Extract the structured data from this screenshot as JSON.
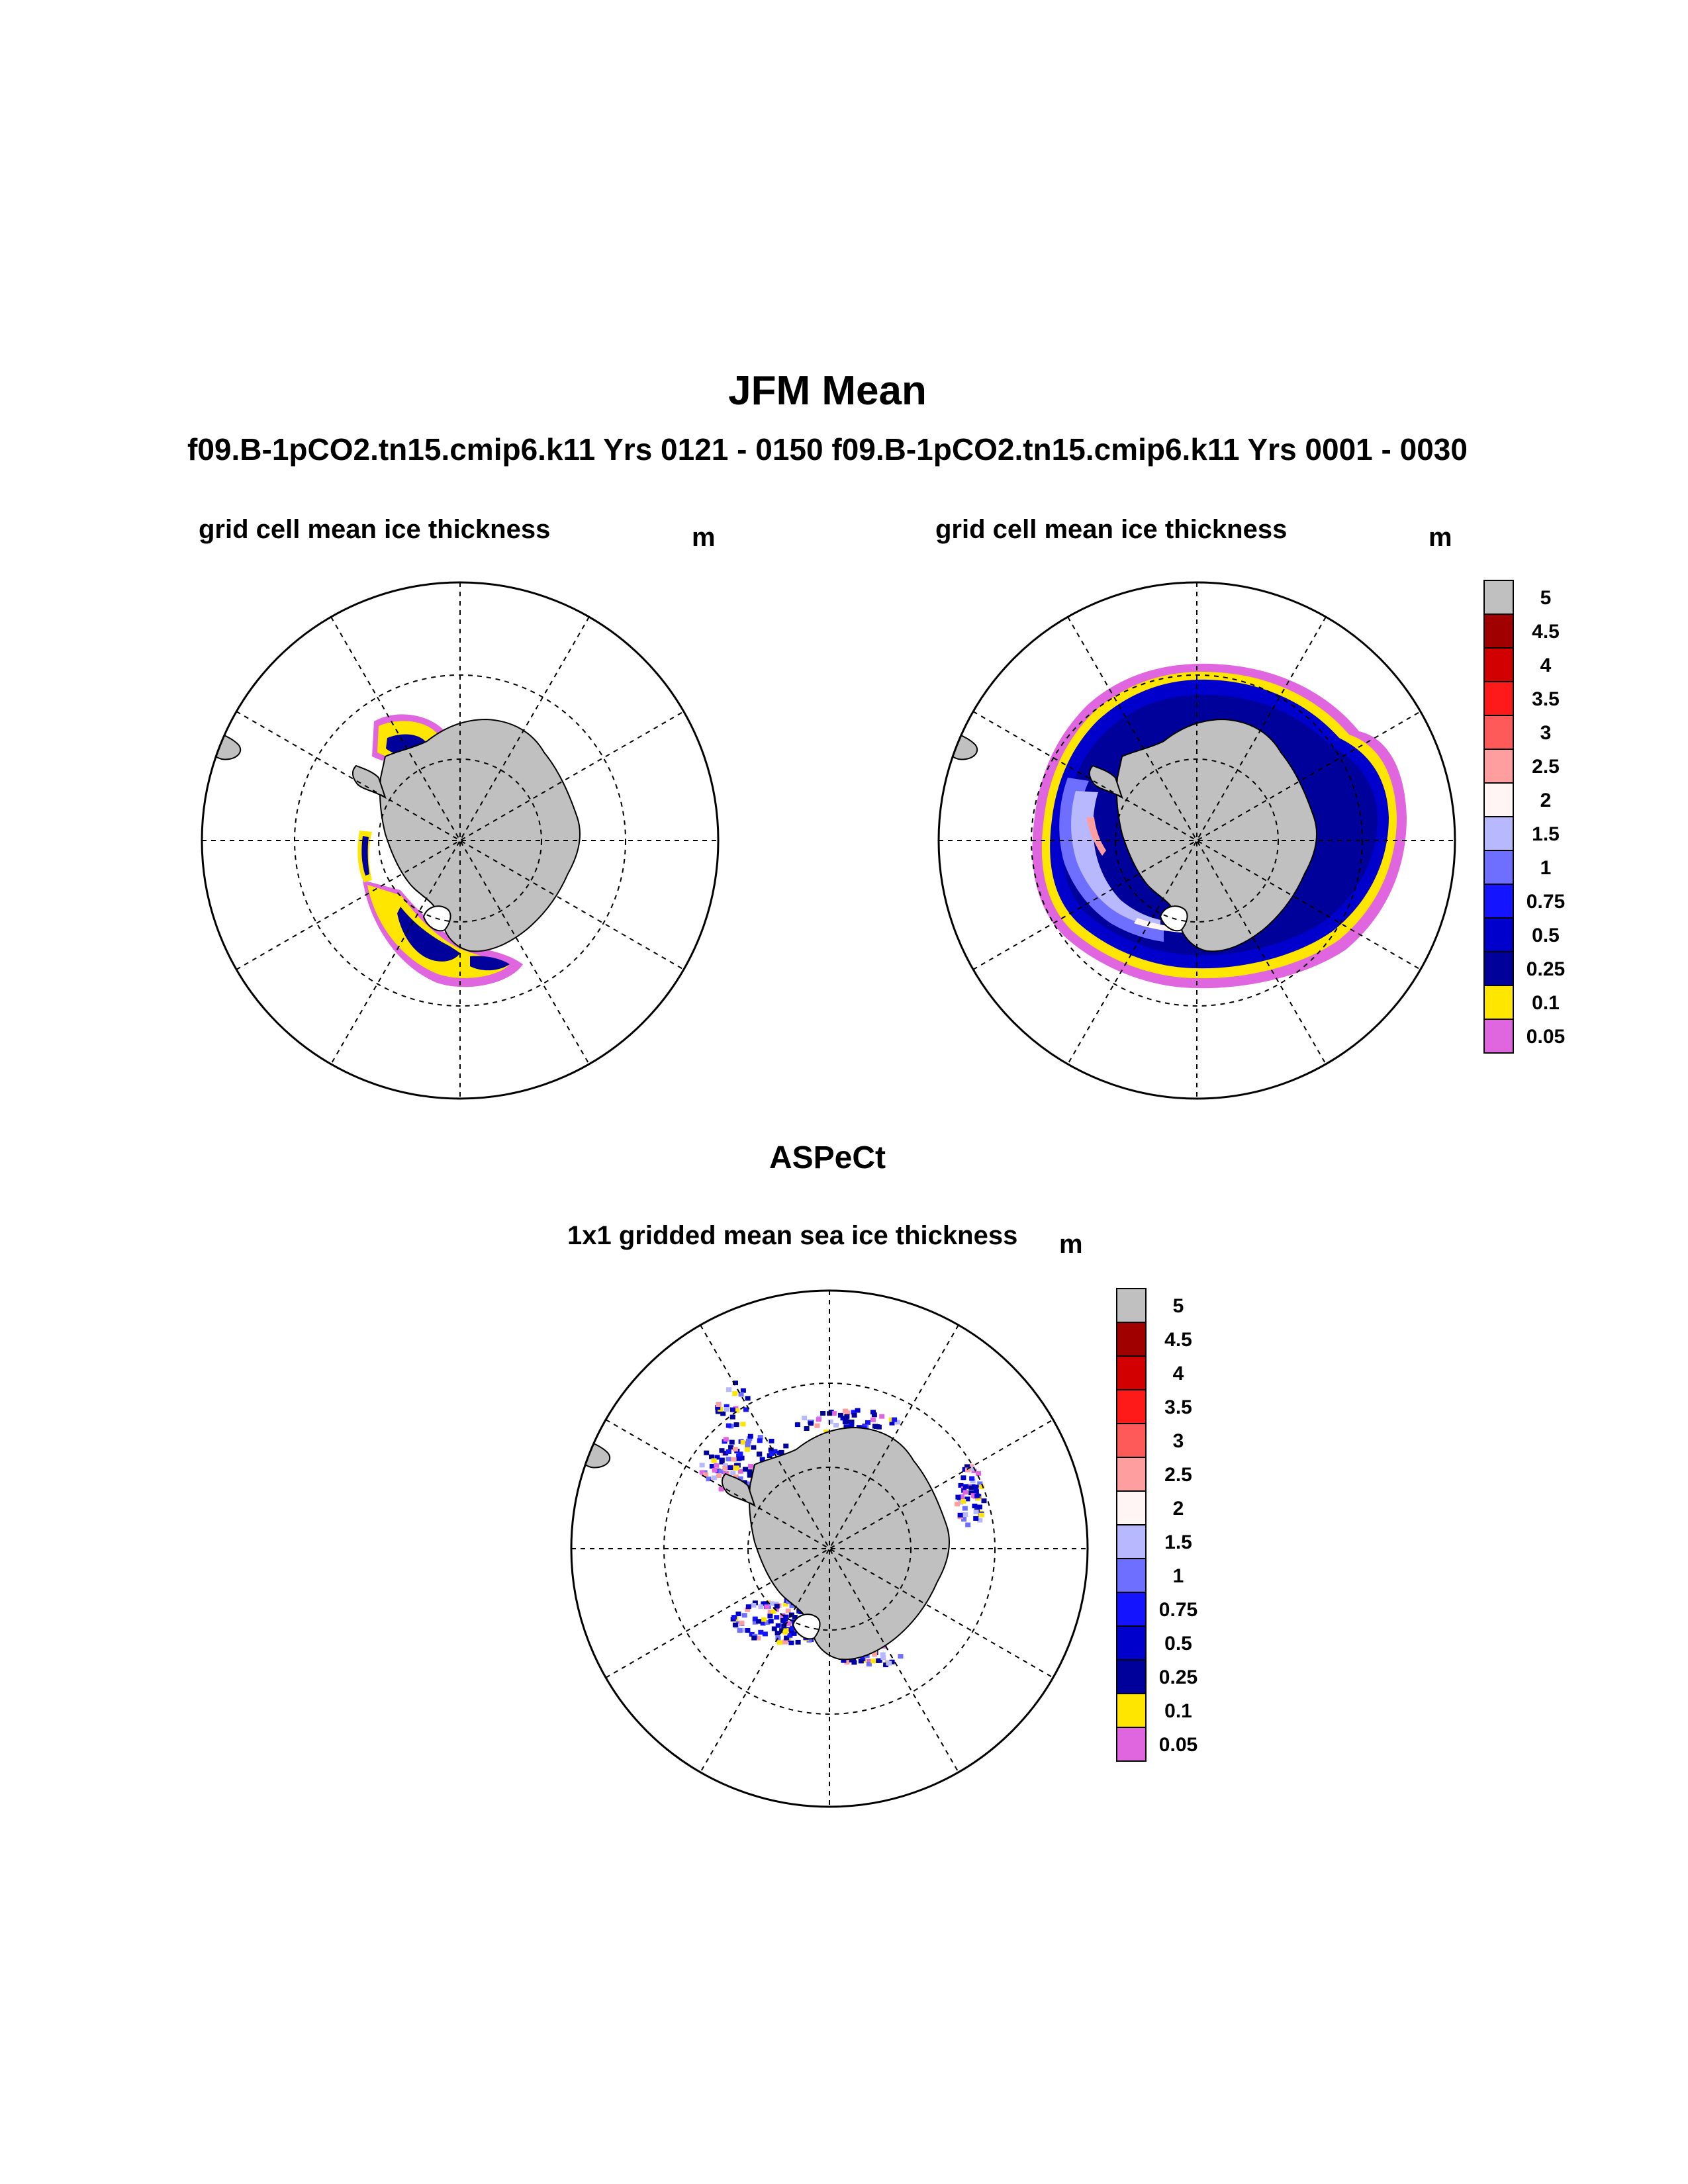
{
  "figure": {
    "title": "JFM Mean",
    "subtitle": "f09.B-1pCO2.tn15.cmip6.k11  Yrs 0121 - 0150 f09.B-1pCO2.tn15.cmip6.k11  Yrs 0001 - 0030",
    "section_title": "ASPeCt"
  },
  "panels": [
    {
      "title": "grid cell mean ice thickness",
      "unit": "m"
    },
    {
      "title": "grid cell mean ice thickness",
      "unit": "m"
    },
    {
      "title": "1x1 gridded mean sea ice thickness",
      "unit": "m"
    }
  ],
  "colorbar": {
    "labels": [
      "5",
      "4.5",
      "4",
      "3.5",
      "3",
      "2.5",
      "2",
      "1.5",
      "1",
      "0.75",
      "0.5",
      "0.25",
      "0.1",
      "0.05"
    ],
    "colors": [
      "#c0c0c0",
      "#a00000",
      "#d20000",
      "#ff1a1a",
      "#ff5a5a",
      "#ff9e9e",
      "#fff5f5",
      "#b8b8ff",
      "#6e6eff",
      "#1414ff",
      "#0000cc",
      "#00009a",
      "#ffe600",
      "#e066e0"
    ]
  },
  "palette": {
    "land": "#c0c0c0",
    "coast": "#000000",
    "grid": "#000000"
  }
}
